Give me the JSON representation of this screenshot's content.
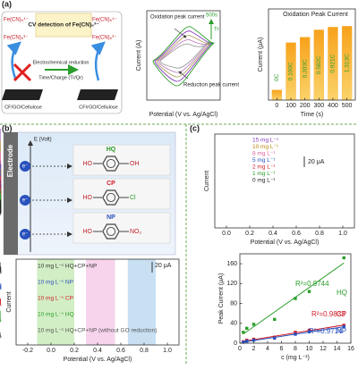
{
  "panel_labels": [
    "(a)",
    "(b)",
    "(c)"
  ],
  "panel_a_diagram": {
    "title": "CV detection of Fe(CN)₆³⁻",
    "ions": [
      "Fe(CN)₆⁴⁻",
      "Fe(CN)₆³⁻",
      "Fe(CN)₆⁴⁻",
      "Fe(CN)₆³⁻"
    ],
    "arrow_label": "Electrochemical reduction",
    "arrow_sublabel": "Time/Charge (Tr/Qr)",
    "left_material": "CF/GO/Cellulose",
    "right_material": "CF/rGO/Cellulose"
  },
  "panel_b_diagram": {
    "electrode": "Electrode",
    "axis": "E (Volt)",
    "electrons": [
      "e⁻",
      "e⁻",
      "e⁻"
    ],
    "molecules": [
      {
        "name": "HQ",
        "color": "#2a9d2a",
        "left": "HO",
        "right": "OH"
      },
      {
        "name": "CP",
        "color": "#d0202a",
        "left": "HO",
        "right": "Cl"
      },
      {
        "name": "NP",
        "color": "#2a52be",
        "left": "HO",
        "right": "NO₂"
      }
    ]
  },
  "chart_data": [
    {
      "type": "cv",
      "xlabel": "Potential (V vs. Ag/AgCl)",
      "ylabel": "Current (A)",
      "annotations": [
        "Oxidation peak current",
        "Reduction peak current"
      ],
      "time_labels": [
        "500s",
        "Tr",
        "0s"
      ]
    },
    {
      "type": "bar",
      "title": "Oxidation Peak Current",
      "xlabel": "Time (s)",
      "ylabel": "Current (μA)",
      "x": [
        0,
        100,
        200,
        300,
        400,
        500
      ],
      "values": [
        0.11,
        0.63,
        0.69,
        0.77,
        0.8,
        0.81
      ],
      "charge_labels": [
        "0C",
        "0.100C",
        "0.303C",
        "0.582C",
        "0.921C",
        "1.313C"
      ],
      "color": "#f5a623",
      "xlim": [
        -60,
        560
      ],
      "xticks": [
        0,
        100,
        200,
        300,
        400,
        500
      ],
      "ylim": [
        0,
        1
      ]
    },
    {
      "type": "dpv_stack",
      "xlabel": "Potential (V vs. Ag/AgCl)",
      "ylabel": "Current",
      "scale_bar": "20 μA",
      "xlim": [
        -0.3,
        1.1
      ],
      "xticks": [
        -0.2,
        {
          "value": 0,
          "label": "0.0"
        },
        0.2,
        0.4,
        0.6,
        0.8,
        {
          "value": 1,
          "label": "1.0"
        }
      ],
      "bands": [
        {
          "range": [
            -0.12,
            0.2
          ],
          "color": "#c3e8b2"
        },
        {
          "range": [
            0.3,
            0.55
          ],
          "color": "#f4c4e6"
        },
        {
          "range": [
            0.66,
            0.9
          ],
          "color": "#b5d5ee"
        }
      ],
      "series": [
        {
          "name": "10 mg L⁻¹ HQ+CP+NP",
          "color": "#333333"
        },
        {
          "name": "10 mg L⁻¹ NP",
          "color": "#2a52be"
        },
        {
          "name": "10 mg L⁻¹ CP",
          "color": "#d0202a"
        },
        {
          "name": "10 mg L⁻¹ HQ",
          "color": "#2a9d2a"
        },
        {
          "name": "10 mg L⁻¹ HQ+CP+NP (without GO reduction)",
          "color": "#555555"
        }
      ]
    },
    {
      "type": "dpv",
      "xlabel": "Potential (V vs. Ag/AgCl)",
      "ylabel": "Current",
      "scale_bar": "20 μA",
      "xlim": [
        -0.1,
        1.1
      ],
      "xticks": [
        {
          "value": 0,
          "label": "0.0"
        },
        0.2,
        0.4,
        0.6,
        0.8,
        {
          "value": 1,
          "label": "1.0"
        }
      ],
      "series": [
        {
          "name": "15 mg L⁻¹",
          "color": "#8a3fbf"
        },
        {
          "name": "10 mg L⁻¹",
          "color": "#b8860b"
        },
        {
          "name": "8 mg L⁻¹",
          "color": "#e0609a"
        },
        {
          "name": "5 mg L⁻¹",
          "color": "#2a52be"
        },
        {
          "name": "2 mg L⁻¹",
          "color": "#d0202a"
        },
        {
          "name": "1 mg L⁻¹",
          "color": "#2a9d2a"
        },
        {
          "name": "0 mg L⁻¹",
          "color": "#222222"
        }
      ]
    },
    {
      "type": "scatter",
      "xlabel": "c (mg L⁻¹)",
      "ylabel": "Peak Current (μA)",
      "xlim": [
        0,
        16
      ],
      "xticks": [
        0,
        2,
        4,
        6,
        8,
        10,
        12,
        14,
        16
      ],
      "ylim": [
        0,
        180
      ],
      "yticks": [
        0,
        40,
        80,
        120,
        160
      ],
      "series": [
        {
          "name": "HQ",
          "color": "#2a9d2a",
          "r2_label": "R²=0.9744",
          "x": [
            0.5,
            1,
            2,
            5,
            8,
            10,
            15
          ],
          "values": [
            22,
            30,
            38,
            48,
            90,
            104,
            172
          ]
        },
        {
          "name": "CP",
          "color": "#d0202a",
          "r2_label": "R²=0.9833",
          "x": [
            0.5,
            1,
            2,
            5,
            8,
            10,
            15
          ],
          "values": [
            3,
            6,
            8,
            12,
            22,
            26,
            36
          ]
        },
        {
          "name": "NP",
          "color": "#2a52be",
          "r2_label": "R²=0.9714",
          "x": [
            0.5,
            1,
            2,
            5,
            8,
            10,
            15
          ],
          "values": [
            2,
            4,
            6,
            10,
            18,
            23,
            33
          ]
        }
      ]
    }
  ]
}
